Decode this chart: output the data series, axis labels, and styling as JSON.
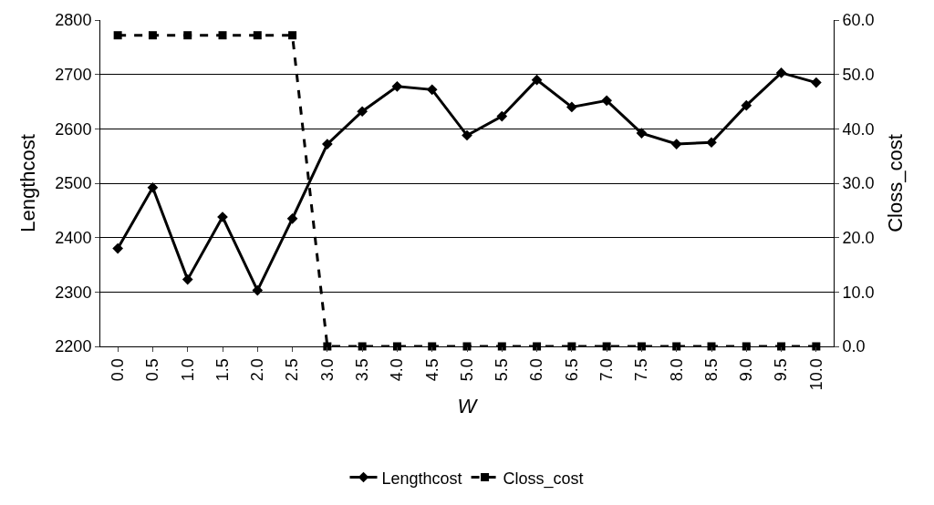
{
  "chart_data": {
    "type": "line",
    "xlabel": "W",
    "ylabel": "Lengthcost",
    "y2label": "Closs_cost",
    "categories": [
      "0.0",
      "0.5",
      "1.0",
      "1.5",
      "2.0",
      "2.5",
      "3.0",
      "3.5",
      "4.0",
      "4.5",
      "5.0",
      "5.5",
      "6.0",
      "6.5",
      "7.0",
      "7.5",
      "8.0",
      "8.5",
      "9.0",
      "9.5",
      "10.0"
    ],
    "series": [
      {
        "name": "Lengthcost",
        "color": "#000000",
        "marker": "diamond",
        "line_style": "solid",
        "values": [
          2380,
          2492,
          2323,
          2438,
          2303,
          2435,
          2572,
          2632,
          2678,
          2672,
          2588,
          2623,
          2690,
          2640,
          2652,
          2592,
          2572,
          2575,
          2643,
          2703,
          2685
        ]
      },
      {
        "name": "Closs_cost",
        "color": "#000000",
        "marker": "square",
        "line_style": "dashed",
        "axis": "y2",
        "values": [
          57.2,
          57.2,
          57.2,
          57.2,
          57.2,
          57.2,
          0,
          0,
          0,
          0,
          0,
          0,
          0,
          0,
          0,
          0,
          0,
          0,
          0,
          0,
          0
        ]
      }
    ],
    "ylim": [
      2200,
      2800
    ],
    "yticks": [
      2200,
      2300,
      2400,
      2500,
      2600,
      2700,
      2800
    ],
    "y2lim": [
      0,
      60
    ],
    "y2ticks": [
      {
        "value": 0,
        "label": "0.0"
      },
      {
        "value": 10,
        "label": "10.0"
      },
      {
        "value": 20,
        "label": "20.0"
      },
      {
        "value": 30,
        "label": "30.0"
      },
      {
        "value": 40,
        "label": "40.0"
      },
      {
        "value": 50,
        "label": "50.0"
      },
      {
        "value": 60,
        "label": "60.0"
      }
    ],
    "grid": "y",
    "legend": "bottom"
  }
}
